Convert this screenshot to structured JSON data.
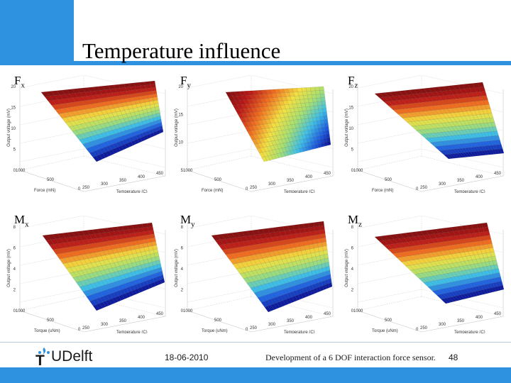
{
  "slide": {
    "title": "Temperature influence"
  },
  "panels": [
    {
      "id": "fx",
      "base": "F",
      "sub": "x",
      "zlabel": "Output voltage (mV)",
      "xlabel": "Force (mN)",
      "ylabel": "Temperature (C)",
      "zticks": [
        "20",
        "15",
        "10",
        "5",
        "0"
      ],
      "xticks": [
        "1000",
        "500",
        "0"
      ],
      "yticks": [
        "250",
        "300",
        "350",
        "400",
        "450"
      ]
    },
    {
      "id": "fy",
      "base": "F",
      "sub": "y",
      "zlabel": "Output voltage (mV)",
      "xlabel": "Force (mN)",
      "ylabel": "Temperature (C)",
      "zticks": [
        "20",
        "15",
        "10",
        "5"
      ],
      "xticks": [
        "1000",
        "500",
        "0"
      ],
      "yticks": [
        "250",
        "300",
        "350",
        "400",
        "450"
      ]
    },
    {
      "id": "fz",
      "base": "F",
      "sub": "z",
      "zlabel": "Output voltage (mV)",
      "xlabel": "Force (mN)",
      "ylabel": "Temperature (C)",
      "zticks": [
        "20",
        "15",
        "10",
        "5",
        "0"
      ],
      "xticks": [
        "1000",
        "500",
        "0"
      ],
      "yticks": [
        "250",
        "300",
        "350",
        "400",
        "450"
      ]
    },
    {
      "id": "mx",
      "base": "M",
      "sub": "x",
      "zlabel": "Output voltage (mV)",
      "xlabel": "Torque (uNm)",
      "ylabel": "Temperature (C)",
      "zticks": [
        "8",
        "6",
        "4",
        "2",
        "0"
      ],
      "xticks": [
        "1000",
        "500",
        "0"
      ],
      "yticks": [
        "250",
        "300",
        "350",
        "400",
        "450"
      ]
    },
    {
      "id": "my",
      "base": "M",
      "sub": "y",
      "zlabel": "Output voltage (mV)",
      "xlabel": "Torque (uNm)",
      "ylabel": "Temperature (C)",
      "zticks": [
        "8",
        "6",
        "4",
        "2",
        "0"
      ],
      "xticks": [
        "1000",
        "500",
        "0"
      ],
      "yticks": [
        "250",
        "300",
        "350",
        "400",
        "450"
      ]
    },
    {
      "id": "mz",
      "base": "M",
      "sub": "z",
      "zlabel": "Output voltage (mV)",
      "xlabel": "Torque (uNm)",
      "ylabel": "Temperature (C)",
      "zticks": [
        "8",
        "6",
        "4",
        "2",
        "0"
      ],
      "xticks": [
        "1000",
        "500",
        "0"
      ],
      "yticks": [
        "250",
        "300",
        "350",
        "400",
        "450"
      ]
    }
  ],
  "footer": {
    "logo_mark": "T",
    "logo_text": "UDelft",
    "date": "18-06-2010",
    "caption": "Development of a 6 DOF interaction force sensor.",
    "page": "48"
  },
  "colors": {
    "accent": "#2f92e0",
    "colormap": [
      "#0a0a8a",
      "#1e5be0",
      "#3fc0e6",
      "#a8e070",
      "#f4e040",
      "#f07020",
      "#b81818",
      "#7a1010"
    ]
  }
}
